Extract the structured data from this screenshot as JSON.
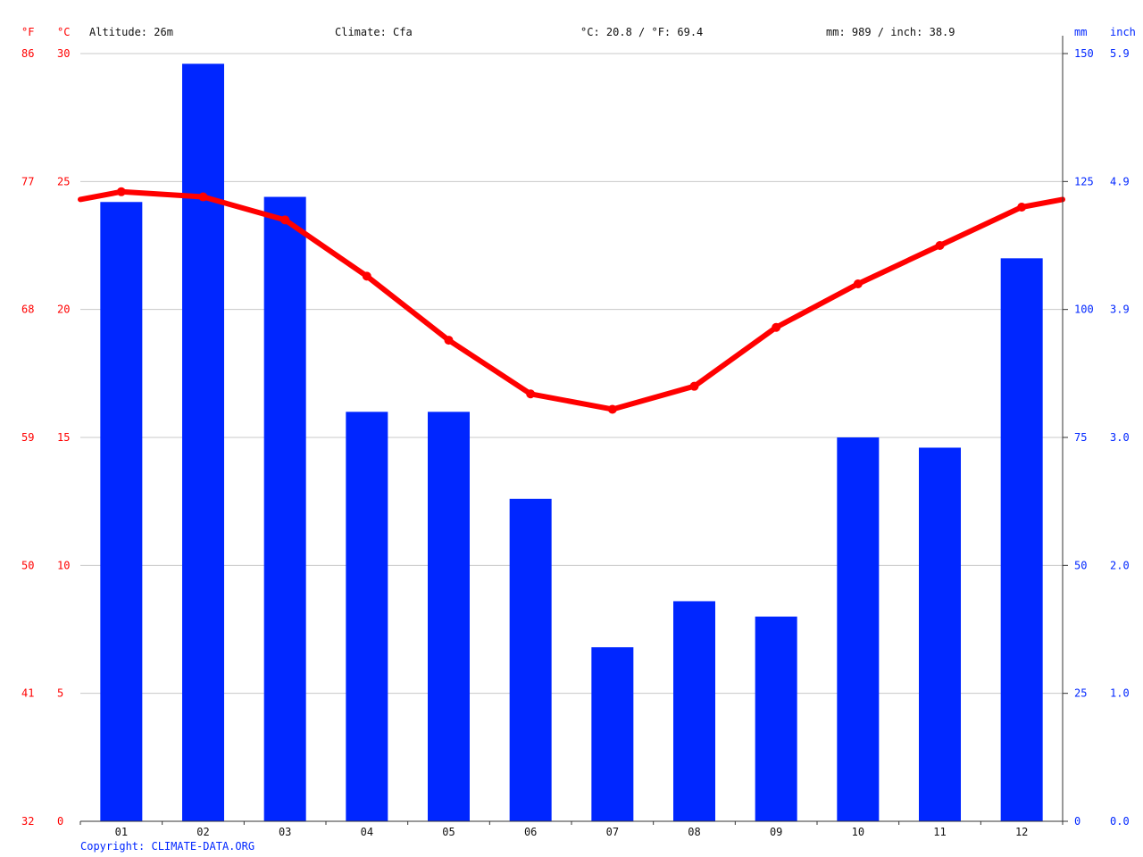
{
  "header": {
    "unit_f": "°F",
    "unit_c": "°C",
    "altitude": "Altitude: 26m",
    "climate": "Climate: Cfa",
    "temp_avg": "°C: 20.8 / °F: 69.4",
    "precip_total": "mm: 989 / inch: 38.9",
    "unit_mm": "mm",
    "unit_inch": "inch"
  },
  "copyright": "Copyright: CLIMATE-DATA.ORG",
  "colors": {
    "temperature": "#ff0000",
    "precipitation": "#0026ff",
    "grid": "#c8c8c8"
  },
  "chart_data": {
    "type": "bar",
    "categories": [
      "01",
      "02",
      "03",
      "04",
      "05",
      "06",
      "07",
      "08",
      "09",
      "10",
      "11",
      "12"
    ],
    "series": [
      {
        "type": "bar",
        "axis": "right",
        "values": [
          121,
          148,
          122,
          80,
          80,
          63,
          34,
          43,
          40,
          75,
          73,
          110
        ]
      },
      {
        "type": "line",
        "axis": "left",
        "values": [
          24.6,
          24.4,
          23.5,
          21.3,
          18.8,
          16.7,
          16.1,
          17.0,
          19.3,
          21.0,
          22.5,
          24.0
        ]
      }
    ],
    "left_axis_c": {
      "ylim": [
        0,
        30
      ],
      "ticks": [
        "0",
        "5",
        "10",
        "15",
        "20",
        "25",
        "30"
      ]
    },
    "left_axis_f": {
      "ticks": [
        "32",
        "41",
        "50",
        "59",
        "68",
        "77",
        "86"
      ]
    },
    "right_axis_mm": {
      "ylim": [
        0,
        150
      ],
      "ticks": [
        "0",
        "25",
        "50",
        "75",
        "100",
        "125",
        "150"
      ]
    },
    "right_axis_inch": {
      "ticks": [
        "0.0",
        "1.0",
        "2.0",
        "3.0",
        "3.9",
        "4.9",
        "5.9"
      ]
    },
    "grid": true
  }
}
